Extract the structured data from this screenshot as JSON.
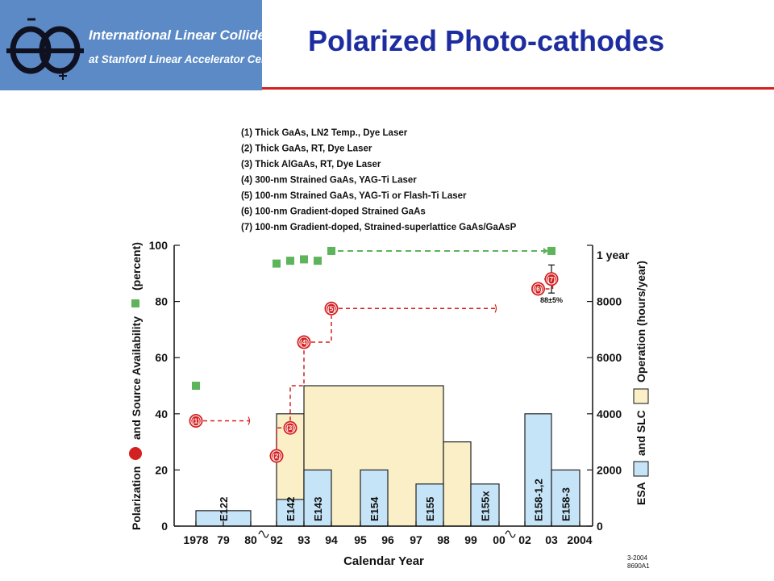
{
  "header": {
    "logo_symbol": "e⁺e⁻",
    "logo_line1": "International Linear Collider",
    "logo_line2": "at Stanford Linear Accelerator Center",
    "title": "Polarized Photo-cathodes",
    "title_color": "#1d2da0",
    "rule_color": "#d42020",
    "logo_bg": "#5b8ac6"
  },
  "chart_data": {
    "type": "composite",
    "legend_lines": [
      "(1) Thick GaAs, LN2 Temp., Dye Laser",
      "(2) Thick GaAs, RT, Dye Laser",
      "(3) Thick AlGaAs, RT, Dye Laser",
      "(4) 300-nm Strained GaAs, YAG-Ti Laser",
      "(5) 100-nm Strained GaAs, YAG-Ti or Flash-Ti Laser",
      "(6) 100-nm Gradient-doped Strained GaAs",
      "(7) 100-nm Gradient-doped, Strained-superlattice GaAs/GaAsP"
    ],
    "xlabel": "Calendar Year",
    "x_ticks": [
      "1978",
      "79",
      "80",
      "92",
      "93",
      "94",
      "95",
      "96",
      "97",
      "98",
      "99",
      "00",
      "02",
      "03",
      "2004"
    ],
    "ylabel_left_parts": [
      "Polarization",
      "and Source Availability",
      "(percent)"
    ],
    "ylabel_right_parts": [
      "ESA",
      "and SLC",
      "Operation  (hours/year)"
    ],
    "yticks_left": [
      0,
      20,
      40,
      60,
      80,
      100
    ],
    "yticks_right": [
      "0",
      "2000",
      "4000",
      "6000",
      "8000",
      "1 year"
    ],
    "ylim_left": [
      0,
      100
    ],
    "ylim_right": [
      0,
      10000
    ],
    "colors": {
      "polarization": "#d42020",
      "availability": "#5db45a",
      "esa": "#c6e4f7",
      "slc": "#fbefc8",
      "outline": "#222222"
    },
    "axis_positions": [
      1978,
      1979,
      1980,
      1992,
      1993,
      1994,
      1995,
      1996,
      1997,
      1998,
      1999,
      2000,
      2002,
      2003,
      2004
    ],
    "esa_experiments": [
      {
        "label": "E122",
        "start": 1978,
        "end": 1980,
        "hours": 550
      },
      {
        "label": "E142",
        "start": 1992,
        "end": 1993,
        "hours": 950
      },
      {
        "label": "E143",
        "start": 1993,
        "end": 1994,
        "hours": 2000
      },
      {
        "label": "E154",
        "start": 1995,
        "end": 1996,
        "hours": 2000
      },
      {
        "label": "E155",
        "start": 1997,
        "end": 1998,
        "hours": 1500
      },
      {
        "label": "E155x",
        "start": 1999,
        "end": 2000,
        "hours": 1500
      },
      {
        "label": "E158-1,2",
        "start": 2002,
        "end": 2003,
        "hours": 4000
      },
      {
        "label": "E158-3",
        "start": 2003,
        "end": 2004,
        "hours": 2000
      }
    ],
    "slc_operation": [
      {
        "start": 1992,
        "end": 1993,
        "hours": 4000
      },
      {
        "start": 1993,
        "end": 1998,
        "hours": 5000
      },
      {
        "start": 1998,
        "end": 1999,
        "hours": 3000
      }
    ],
    "availability_points": [
      {
        "x": 1978,
        "y": 50
      },
      {
        "x": 1992,
        "y": 93.5
      },
      {
        "x": 1992.5,
        "y": 94.5
      },
      {
        "x": 1993,
        "y": 95
      },
      {
        "x": 1993.5,
        "y": 94.5
      },
      {
        "x": 1994,
        "y": 98
      },
      {
        "x": 2003,
        "y": 98
      }
    ],
    "availability_dashed_line": {
      "from": 1994,
      "to": 2003,
      "y": 98
    },
    "polarization_points": [
      {
        "label": "(1)",
        "x": 1978,
        "y": 37.5
      },
      {
        "label": "(2)",
        "x": 1992,
        "y": 25
      },
      {
        "label": "(3)",
        "x": 1992.5,
        "y": 35
      },
      {
        "label": "(4)",
        "x": 1993,
        "y": 65.5
      },
      {
        "label": "(5)",
        "x": 1994,
        "y": 77.5
      },
      {
        "label": "(6)",
        "x": 2002.5,
        "y": 84.5
      },
      {
        "label": "(7)",
        "x": 2003,
        "y": 88
      }
    ],
    "polarization_error_label": "88±5%",
    "polarization_error": 5,
    "figure_code_line1": "3-2004",
    "figure_code_line2": "8690A1"
  }
}
